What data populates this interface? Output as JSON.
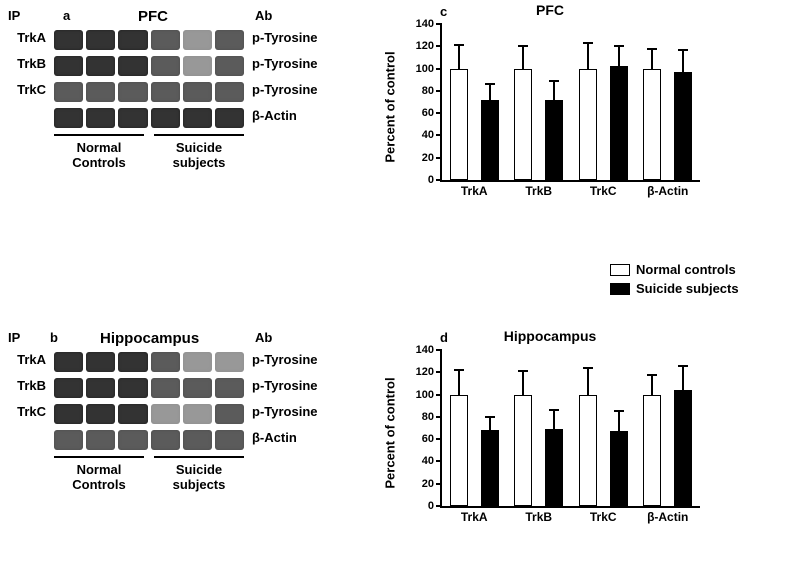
{
  "panel_a": {
    "label": "a",
    "ip_header": "IP",
    "ab_header": "Ab",
    "title": "PFC",
    "rows": [
      {
        "ip": "TrkA",
        "ab": "p-Tyrosine"
      },
      {
        "ip": "TrkB",
        "ab": "p-Tyrosine"
      },
      {
        "ip": "TrkC",
        "ab": "p-Tyrosine"
      },
      {
        "ip": "",
        "ab": "β-Actin"
      }
    ],
    "groups": [
      {
        "label_line1": "Normal",
        "label_line2": "Controls"
      },
      {
        "label_line1": "Suicide",
        "label_line2": "subjects"
      }
    ]
  },
  "panel_b": {
    "label": "b",
    "ip_header": "IP",
    "ab_header": "Ab",
    "title": "Hippocampus",
    "rows": [
      {
        "ip": "TrkA",
        "ab": "p-Tyrosine"
      },
      {
        "ip": "TrkB",
        "ab": "p-Tyrosine"
      },
      {
        "ip": "TrkC",
        "ab": "p-Tyrosine"
      },
      {
        "ip": "",
        "ab": "β-Actin"
      }
    ],
    "groups": [
      {
        "label_line1": "Normal",
        "label_line2": "Controls"
      },
      {
        "label_line1": "Suicide",
        "label_line2": "subjects"
      }
    ]
  },
  "chart_c": {
    "label": "c",
    "title": "PFC",
    "ylabel": "Percent of control",
    "ylim_max": 140,
    "ytick_step": 20,
    "categories": [
      "TrkA",
      "TrkB",
      "TrkC",
      "β-Actin"
    ],
    "series": [
      {
        "name": "Normal controls",
        "color": "white",
        "values": [
          100,
          100,
          100,
          100
        ],
        "errors": [
          21,
          20,
          23,
          18
        ]
      },
      {
        "name": "Suicide subjects",
        "color": "black",
        "values": [
          72,
          72,
          102,
          97
        ],
        "errors": [
          14,
          17,
          18,
          20
        ]
      }
    ]
  },
  "chart_d": {
    "label": "d",
    "title": "Hippocampus",
    "ylabel": "Percent of control",
    "ylim_max": 140,
    "ytick_step": 20,
    "categories": [
      "TrkA",
      "TrkB",
      "TrkC",
      "β-Actin"
    ],
    "series": [
      {
        "name": "Normal controls",
        "color": "white",
        "values": [
          100,
          100,
          100,
          100
        ],
        "errors": [
          22,
          21,
          24,
          18
        ]
      },
      {
        "name": "Suicide subjects",
        "color": "black",
        "values": [
          68,
          69,
          67,
          104
        ],
        "errors": [
          12,
          17,
          18,
          22
        ]
      }
    ]
  },
  "legend": {
    "items": [
      {
        "swatch": "white",
        "text": "Normal controls"
      },
      {
        "swatch": "black",
        "text": "Suicide subjects"
      }
    ]
  },
  "colors": {
    "background": "#ffffff",
    "axis": "#000000",
    "bar_white_fill": "#ffffff",
    "bar_black_fill": "#000000"
  },
  "fonts": {
    "family": "Arial",
    "label_size_pt": 13,
    "title_size_pt": 15,
    "tick_size_pt": 11
  }
}
